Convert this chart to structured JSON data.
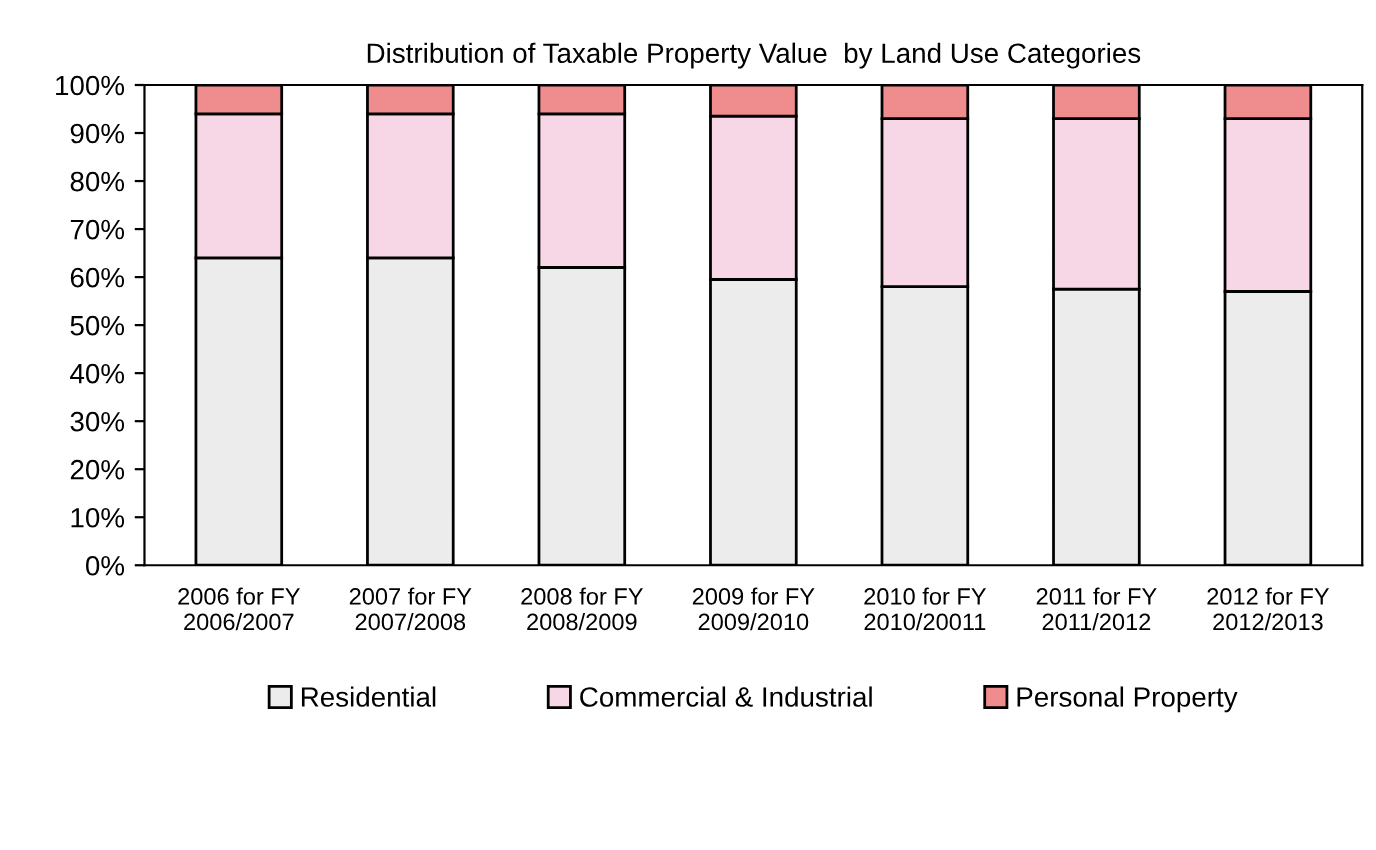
{
  "chart_data": {
    "type": "bar",
    "stacked": true,
    "title": "Distribution of Taxable Property Value  by Land Use Categories",
    "categories": [
      "2006 for FY\n2006/2007",
      "2007 for FY\n2007/2008",
      "2008 for FY\n2008/2009",
      "2009 for FY\n2009/2010",
      "2010 for FY\n2010/20011",
      "2011 for FY\n2011/2012",
      "2012 for FY\n2012/2013"
    ],
    "series": [
      {
        "name": "Residential",
        "color": "#ececec",
        "values": [
          64,
          64,
          62,
          59.5,
          58,
          57.5,
          57
        ]
      },
      {
        "name": "Commercial & Industrial",
        "color": "#f7d6e6",
        "values": [
          30,
          30,
          32,
          34,
          35,
          35.5,
          36
        ]
      },
      {
        "name": "Personal Property",
        "color": "#ee8c8e",
        "values": [
          6,
          6,
          6,
          6.5,
          7,
          7,
          7
        ]
      }
    ],
    "ylim": [
      0,
      100
    ],
    "yticks": [
      {
        "value": 0,
        "label": "0%"
      },
      {
        "value": 10,
        "label": "10%"
      },
      {
        "value": 20,
        "label": "20%"
      },
      {
        "value": 30,
        "label": "30%"
      },
      {
        "value": 40,
        "label": "40%"
      },
      {
        "value": 50,
        "label": "50%"
      },
      {
        "value": 60,
        "label": "60%"
      },
      {
        "value": 70,
        "label": "70%"
      },
      {
        "value": 80,
        "label": "80%"
      },
      {
        "value": 90,
        "label": "90%"
      },
      {
        "value": 100,
        "label": "100%"
      }
    ],
    "grid": false,
    "legend": "bottom"
  }
}
